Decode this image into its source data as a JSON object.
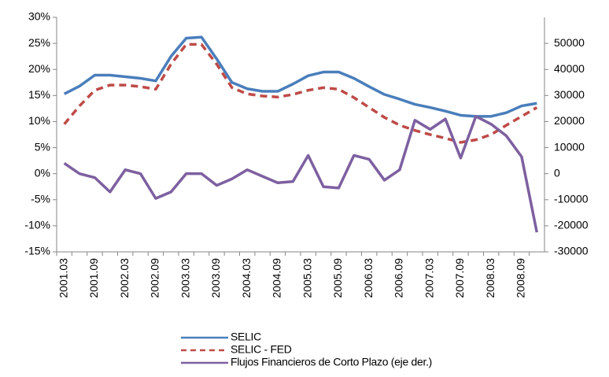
{
  "chart_data": {
    "type": "line",
    "categories": [
      "2001.03",
      null,
      "2001.09",
      null,
      "2002.03",
      null,
      "2002.09",
      null,
      "2003.03",
      null,
      "2003.09",
      null,
      "2004.03",
      null,
      "2004.09",
      null,
      "2005.03",
      null,
      "2005.09",
      null,
      "2006.03",
      null,
      "2006.09",
      null,
      "2007.03",
      null,
      "2007.09",
      null,
      "2008.03",
      null,
      "2008.09",
      null
    ],
    "series": [
      {
        "name": "SELIC",
        "color": "#4a7ebb",
        "values": [
          15.3,
          16.8,
          18.9,
          18.9,
          18.6,
          18.3,
          17.8,
          22.5,
          26,
          26.2,
          22,
          17.5,
          16.3,
          15.8,
          15.8,
          17.2,
          18.8,
          19.5,
          19.5,
          18.3,
          16.7,
          15.2,
          14.3,
          13.3,
          12.7,
          12,
          11.2,
          11,
          11,
          11.7,
          13,
          13.5
        ]
      },
      {
        "name": "SELIC - FED",
        "color": "#be4b48",
        "dash": true,
        "values": [
          9.5,
          13,
          16,
          17,
          17,
          16.7,
          16.2,
          21,
          24.8,
          24.8,
          21,
          16.5,
          15.3,
          14.9,
          14.7,
          15.2,
          16,
          16.5,
          16.2,
          14.6,
          12.7,
          10.8,
          9.3,
          8.3,
          7.5,
          6.8,
          6,
          6.5,
          7.5,
          9.3,
          11,
          12.7
        ]
      },
      {
        "name": "Flujos Financieros de Corto Plazo (eje der.)",
        "color": "#7d60a0",
        "axis": "y2",
        "values": [
          4000,
          0,
          -1500,
          -7000,
          1500,
          0,
          -9500,
          -7000,
          0,
          0,
          -4500,
          -2000,
          1500,
          -1000,
          -3500,
          -3000,
          7000,
          -5000,
          -5500,
          7000,
          5500,
          -2500,
          1500,
          20500,
          17000,
          21000,
          6000,
          22000,
          19000,
          14500,
          6500,
          -22500
        ]
      }
    ],
    "ylim": [
      -15,
      30
    ],
    "yticks": [
      {
        "value": -15,
        "label": "-15%"
      },
      {
        "value": -10,
        "label": "-10%"
      },
      {
        "value": -5,
        "label": "-5%"
      },
      {
        "value": 0,
        "label": "0%"
      },
      {
        "value": 5,
        "label": "5%"
      },
      {
        "value": 10,
        "label": "10%"
      },
      {
        "value": 15,
        "label": "15%"
      },
      {
        "value": 20,
        "label": "20%"
      },
      {
        "value": 25,
        "label": "25%"
      },
      {
        "value": 30,
        "label": "30%"
      }
    ],
    "y2lim": [
      -30000,
      60000
    ],
    "y2ticks": [
      -30000,
      -20000,
      -10000,
      0,
      10000,
      20000,
      30000,
      40000,
      50000
    ],
    "legend": "bottom"
  }
}
